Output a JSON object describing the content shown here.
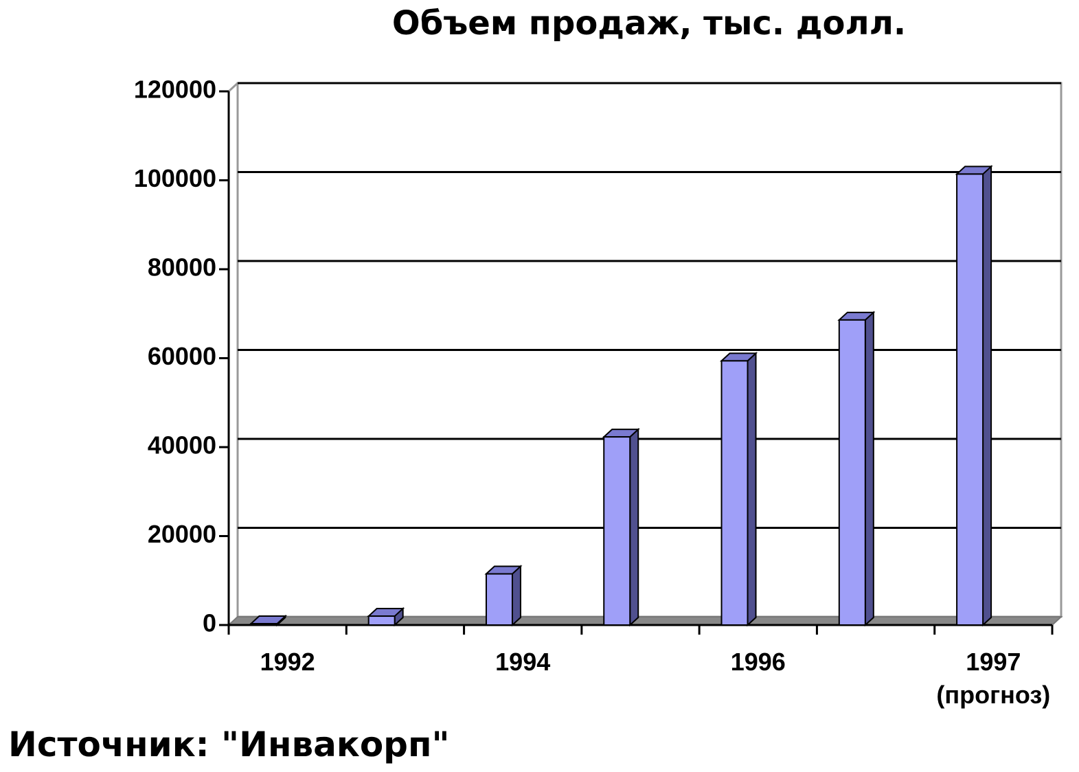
{
  "chart_data": {
    "type": "bar",
    "title": "Объем продаж, тыс. долл.",
    "categories": [
      "1992",
      null,
      "1994",
      null,
      "1996",
      null,
      "1997\n(прогноз)"
    ],
    "values": [
      300,
      2000,
      11500,
      42300,
      59400,
      68600,
      101400
    ],
    "color": "#9f9ff8",
    "ylim": [
      0,
      120000
    ],
    "yticks": [
      0,
      20000,
      40000,
      60000,
      80000,
      100000,
      120000
    ],
    "grid": true
  },
  "source": "Источник: \"Инвакорп\""
}
